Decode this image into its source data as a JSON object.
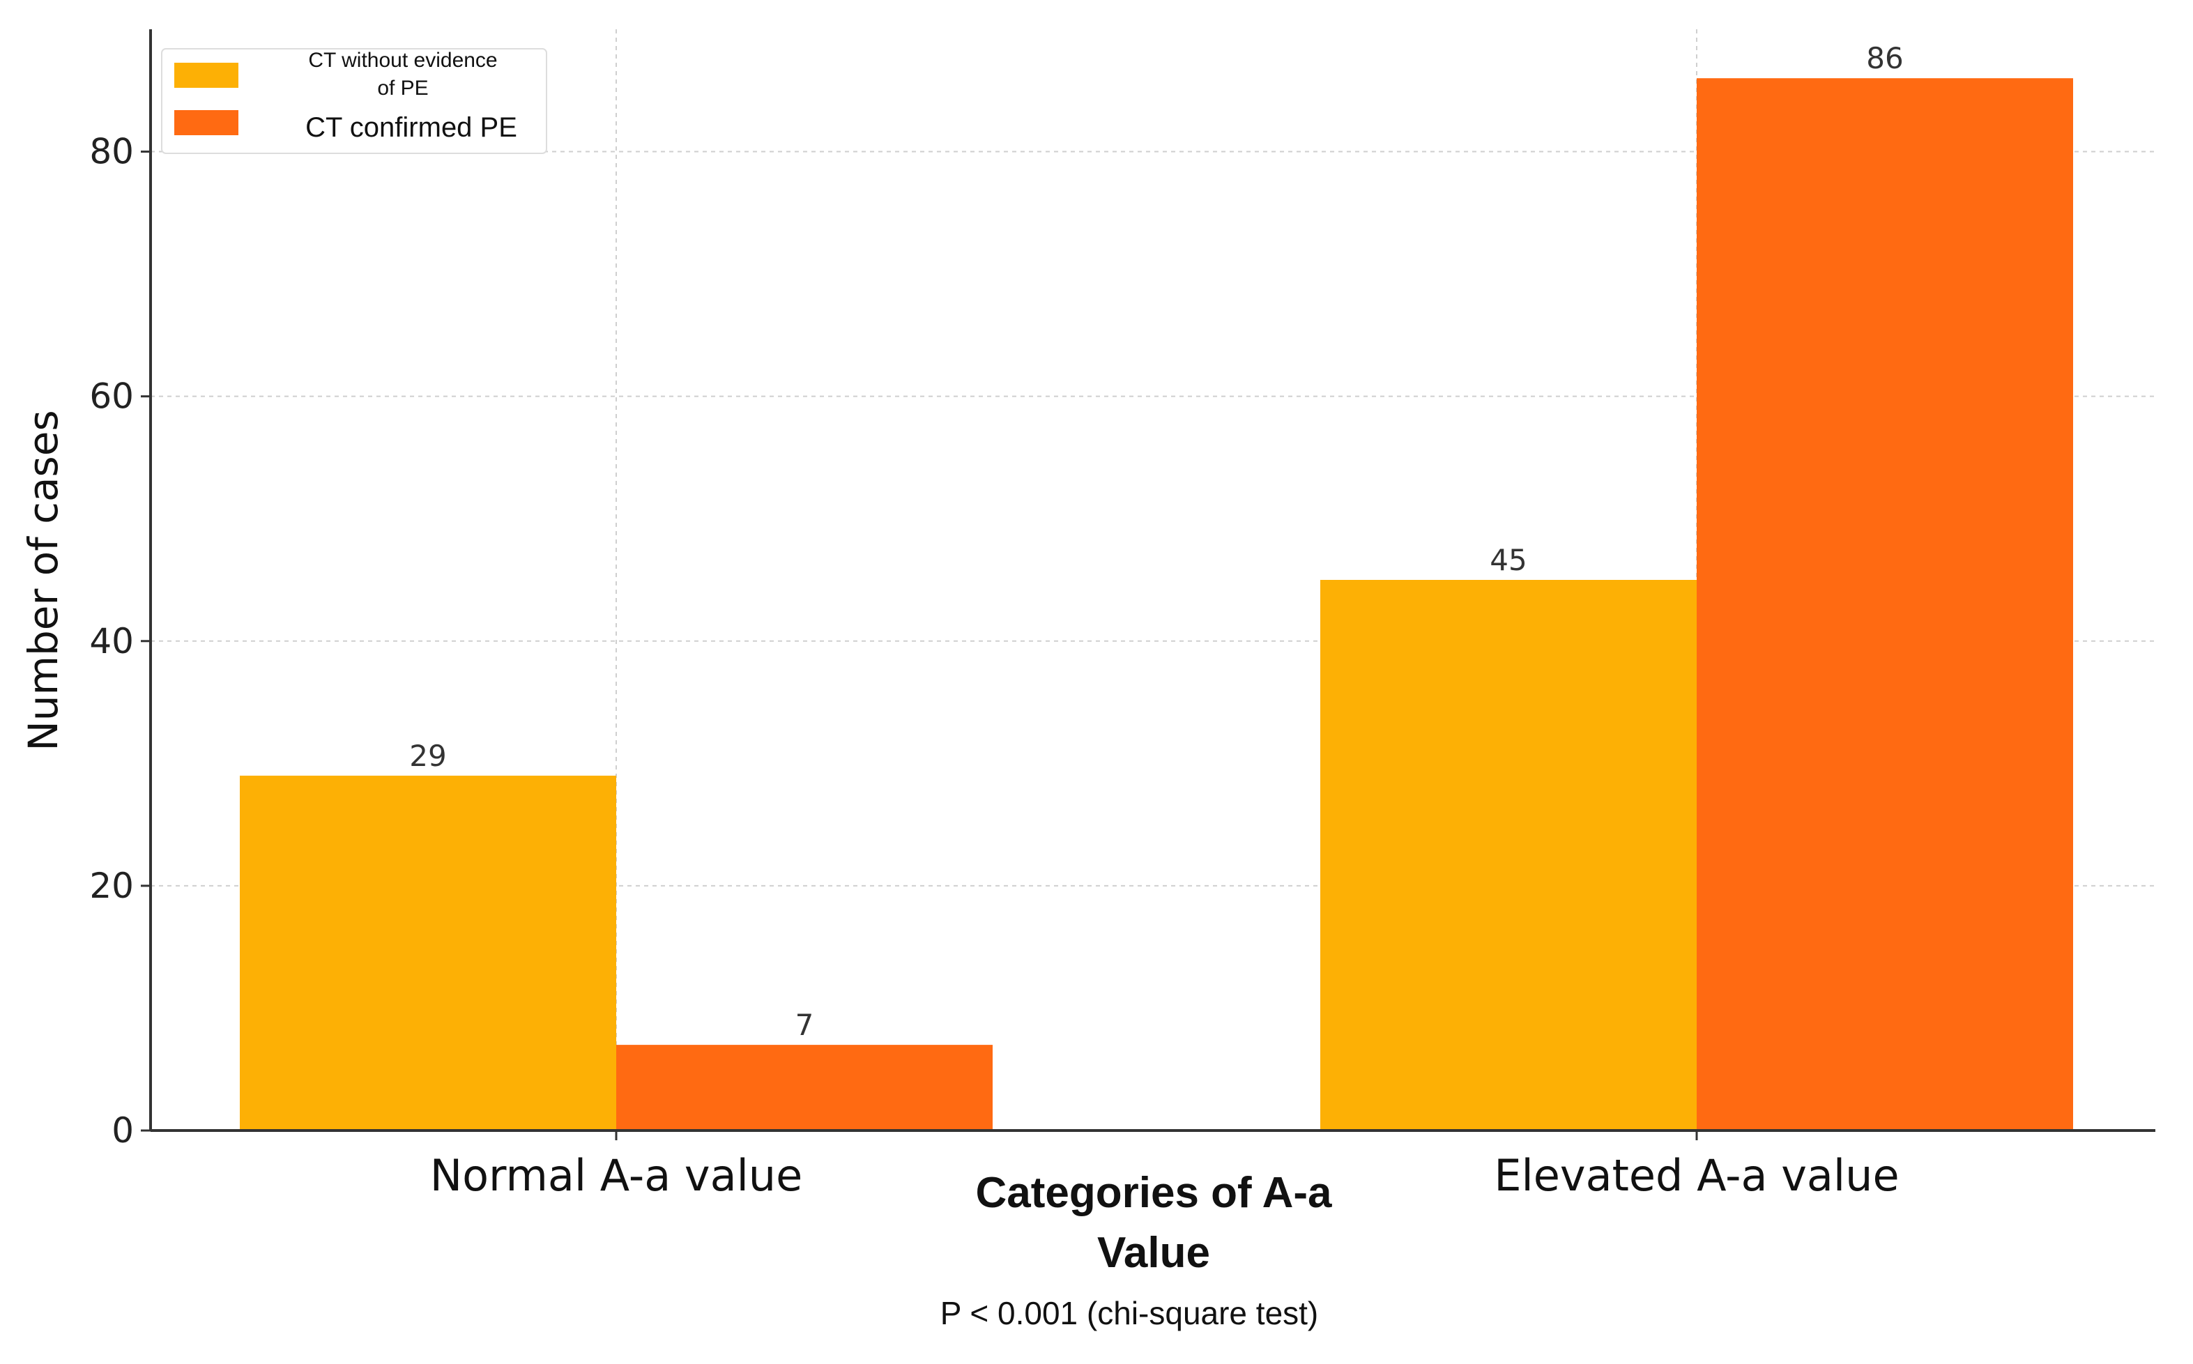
{
  "chart_data": {
    "type": "bar",
    "title": "",
    "xlabel_lines": [
      "Categories of A-a",
      "Value"
    ],
    "ylabel": "Number of cases",
    "annotation": "P < 0.001 (chi-square test)",
    "categories": [
      "Normal A-a value",
      "Elevated A-a value"
    ],
    "series": [
      {
        "name_lines": [
          "CT without evidence",
          "of PE"
        ],
        "color": "#FDB005",
        "values": [
          29,
          45
        ]
      },
      {
        "name_lines": [
          "CT confirmed PE"
        ],
        "color": "#FF6A12",
        "values": [
          7,
          86
        ]
      }
    ],
    "ylim": [
      0,
      90
    ],
    "yticks": [
      "0",
      "20",
      "40",
      "60",
      "80"
    ],
    "grid": true,
    "legend_position": "top-left"
  }
}
